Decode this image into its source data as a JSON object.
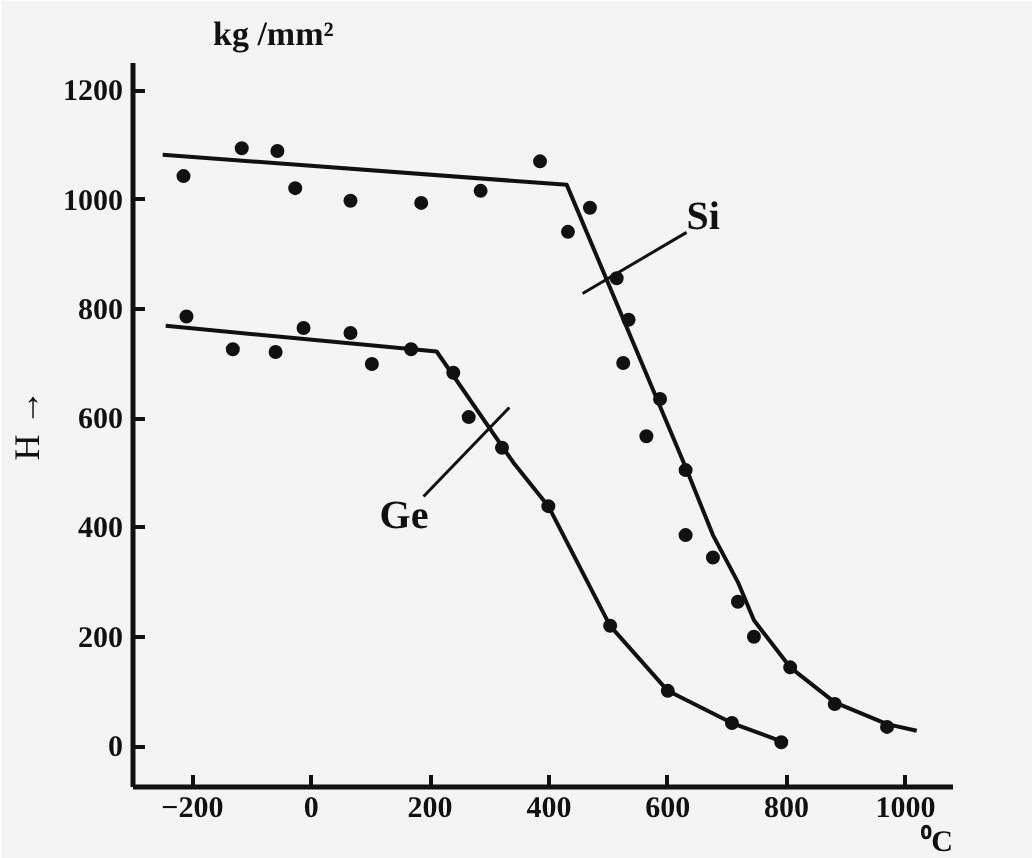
{
  "chart_data": {
    "type": "scatter",
    "title": "kg /mm²",
    "xlabel": "⁰C",
    "ylabel": "H →",
    "xlim": [
      -300,
      1080
    ],
    "ylim": [
      -75,
      1250
    ],
    "xticks": [
      -200,
      0,
      200,
      400,
      600,
      800,
      1000
    ],
    "yticks": [
      0,
      200,
      400,
      600,
      800,
      1000,
      1200
    ],
    "grid": false,
    "marker": "circle",
    "series": [
      {
        "color": "#111111",
        "x": [
          -215,
          -117,
          -57,
          -27,
          66,
          185,
          285,
          385,
          432,
          469,
          514,
          534,
          525,
          587,
          564,
          630,
          630,
          676,
          718,
          745,
          806,
          881,
          969
        ],
        "values": [
          1043,
          1094,
          1089,
          1021,
          998,
          994,
          1016,
          1070,
          941,
          985,
          856,
          780,
          701,
          635,
          567,
          505,
          386,
          345,
          264,
          200,
          144,
          77,
          35
        ]
      },
      {
        "type": "line",
        "marker": "none",
        "color": "#111111",
        "line_style": "solid",
        "x": [
          -250,
          430,
          632,
          676,
          718,
          745,
          806,
          881,
          969,
          1019
        ],
        "values": [
          1082,
          1027,
          505,
          386,
          300,
          230,
          144,
          80,
          40,
          28
        ]
      },
      {
        "color": "#111111",
        "x": [
          -210,
          -132,
          -60,
          -13,
          66,
          102,
          168,
          239,
          265,
          321,
          399,
          503,
          600,
          708,
          791
        ],
        "values": [
          786,
          726,
          721,
          765,
          756,
          699,
          726,
          683,
          602,
          546,
          439,
          220,
          101,
          42,
          7
        ]
      },
      {
        "type": "line",
        "marker": "none",
        "color": "#111111",
        "line_style": "solid",
        "x": [
          -245,
          211,
          340,
          399,
          503,
          600,
          708,
          800
        ],
        "values": [
          769,
          722,
          519,
          439,
          220,
          101,
          42,
          5
        ]
      }
    ],
    "annotations": [
      {
        "text": "Si",
        "x": 497,
        "y": 854
      },
      {
        "text": "Ge",
        "x": 300,
        "y": 582
      }
    ]
  }
}
